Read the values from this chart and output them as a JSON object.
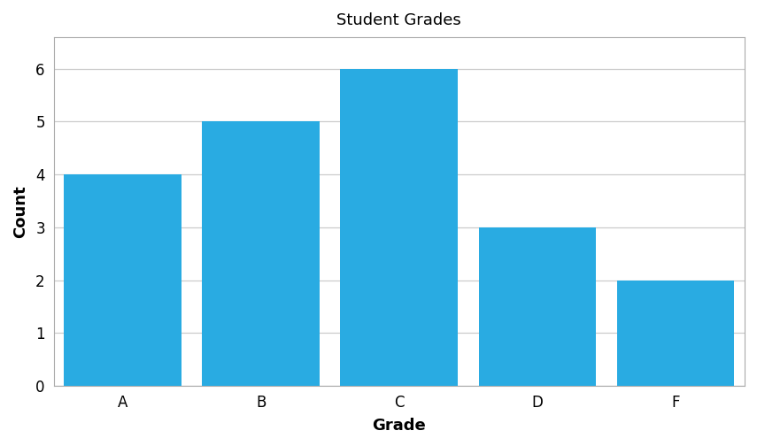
{
  "categories": [
    "A",
    "B",
    "C",
    "D",
    "F"
  ],
  "values": [
    4,
    5,
    6,
    3,
    2
  ],
  "bar_color": "#29ABE2",
  "title": "Student Grades",
  "xlabel": "Grade",
  "ylabel": "Count",
  "ylim": [
    0,
    6.6
  ],
  "yticks": [
    0,
    1,
    2,
    3,
    4,
    5,
    6
  ],
  "title_fontsize": 13,
  "axis_label_fontsize": 13,
  "tick_fontsize": 12,
  "bar_width": 0.85,
  "background_color": "#ffffff",
  "grid_color": "#cccccc",
  "edge_color": "none",
  "spine_color": "#aaaaaa"
}
